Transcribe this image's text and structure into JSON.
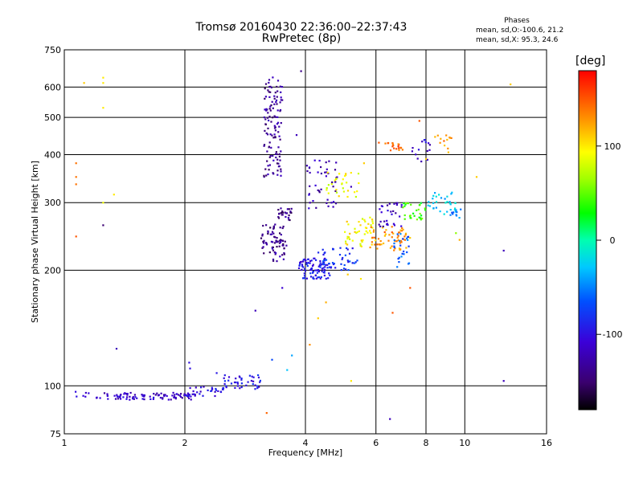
{
  "header": {
    "title": "Tromsø 20160430 22:36:00–22:37:43",
    "subtitle": "RwPretec (8p)",
    "phases_title": "Phases",
    "phases_o": "mean, sd,O:-100.6, 21.2",
    "phases_x": "mean, sd,X:  95.3, 24.6"
  },
  "colorbar": {
    "title": "[deg]",
    "ticks": [
      {
        "label": "100",
        "value": 100
      },
      {
        "label": "0",
        "value": 0
      },
      {
        "label": "-100",
        "value": -100
      }
    ],
    "range": [
      -180,
      180
    ]
  },
  "chart_data": {
    "type": "scatter",
    "title": "Tromsø 20160430 22:36:00–22:37:43",
    "subtitle": "RwPretec (8p)",
    "xlabel": "Frequency [MHz]",
    "ylabel": "Stationary phase Virtual Height [km]",
    "xscale": "log",
    "yscale": "log",
    "xlim": [
      1,
      16
    ],
    "ylim": [
      75,
      750
    ],
    "grid": true,
    "color_by": "phase (deg)",
    "xticks": [
      {
        "label": "1",
        "value": 1
      },
      {
        "label": "2",
        "value": 2
      },
      {
        "label": "4",
        "value": 4
      },
      {
        "label": "6",
        "value": 6
      },
      {
        "label": "8",
        "value": 8
      },
      {
        "label": "10",
        "value": 10
      },
      {
        "label": "16",
        "value": 16
      }
    ],
    "yticks": [
      {
        "label": "75",
        "value": 75
      },
      {
        "label": "100",
        "value": 100
      },
      {
        "label": "200",
        "value": 200
      },
      {
        "label": "300",
        "value": 300
      },
      {
        "label": "400",
        "value": 400
      },
      {
        "label": "500",
        "value": 500
      },
      {
        "label": "600",
        "value": 600
      },
      {
        "label": "750",
        "value": 750
      }
    ],
    "clusters": [
      {
        "f": [
          1.05,
          1.15
        ],
        "h": [
          93,
          97
        ],
        "phase": -110,
        "n": 6
      },
      {
        "f": [
          1.2,
          2.1
        ],
        "h": [
          92,
          96
        ],
        "phase": -115,
        "n": 90
      },
      {
        "f": [
          2.0,
          2.5
        ],
        "h": [
          94,
          100
        ],
        "phase": -100,
        "n": 35
      },
      {
        "f": [
          2.5,
          3.1
        ],
        "h": [
          98,
          107
        ],
        "phase": -95,
        "n": 40
      },
      {
        "f": [
          3.15,
          3.5
        ],
        "h": [
          350,
          640
        ],
        "phase": -135,
        "n": 120
      },
      {
        "f": [
          3.4,
          3.7
        ],
        "h": [
          270,
          290
        ],
        "phase": -140,
        "n": 25
      },
      {
        "f": [
          3.1,
          3.55
        ],
        "h": [
          220,
          265
        ],
        "phase": -140,
        "n": 55
      },
      {
        "f": [
          3.3,
          3.6
        ],
        "h": [
          210,
          240
        ],
        "phase": -130,
        "n": 20
      },
      {
        "f": [
          3.85,
          4.6
        ],
        "h": [
          190,
          215
        ],
        "phase": -95,
        "n": 95
      },
      {
        "f": [
          4.3,
          5.4
        ],
        "h": [
          200,
          230
        ],
        "phase": -80,
        "n": 45
      },
      {
        "f": [
          4.0,
          4.8
        ],
        "h": [
          290,
          390
        ],
        "phase": -120,
        "n": 45
      },
      {
        "f": [
          4.5,
          5.5
        ],
        "h": [
          310,
          360
        ],
        "phase": 90,
        "n": 30
      },
      {
        "f": [
          5.0,
          6.0
        ],
        "h": [
          230,
          275
        ],
        "phase": 95,
        "n": 45
      },
      {
        "f": [
          5.8,
          7.3
        ],
        "h": [
          225,
          260
        ],
        "phase": 130,
        "n": 55
      },
      {
        "f": [
          6.1,
          7.0
        ],
        "h": [
          260,
          300
        ],
        "phase": -120,
        "n": 30
      },
      {
        "f": [
          6.3,
          7.0
        ],
        "h": [
          410,
          430
        ],
        "phase": 150,
        "n": 18
      },
      {
        "f": [
          7.0,
          8.0
        ],
        "h": [
          270,
          300
        ],
        "phase": 40,
        "n": 30
      },
      {
        "f": [
          8.0,
          9.5
        ],
        "h": [
          280,
          320
        ],
        "phase": -30,
        "n": 30
      },
      {
        "f": [
          8.3,
          9.3
        ],
        "h": [
          400,
          450
        ],
        "phase": 130,
        "n": 12
      },
      {
        "f": [
          6.6,
          7.3
        ],
        "h": [
          200,
          250
        ],
        "phase": -60,
        "n": 25
      },
      {
        "f": [
          7.3,
          8.2
        ],
        "h": [
          380,
          440
        ],
        "phase": -110,
        "n": 15
      },
      {
        "f": [
          9.0,
          9.8
        ],
        "h": [
          270,
          290
        ],
        "phase": -50,
        "n": 12
      }
    ],
    "points": [
      {
        "f": 1.12,
        "h": 615,
        "phase": 110
      },
      {
        "f": 1.25,
        "h": 635,
        "phase": 100
      },
      {
        "f": 1.25,
        "h": 615,
        "phase": 100
      },
      {
        "f": 1.25,
        "h": 530,
        "phase": 100
      },
      {
        "f": 1.07,
        "h": 380,
        "phase": 140
      },
      {
        "f": 1.07,
        "h": 350,
        "phase": 140
      },
      {
        "f": 1.07,
        "h": 335,
        "phase": 140
      },
      {
        "f": 1.07,
        "h": 245,
        "phase": 150
      },
      {
        "f": 1.25,
        "h": 300,
        "phase": 90
      },
      {
        "f": 1.33,
        "h": 315,
        "phase": 100
      },
      {
        "f": 1.25,
        "h": 262,
        "phase": -150
      },
      {
        "f": 1.35,
        "h": 125,
        "phase": -120
      },
      {
        "f": 2.05,
        "h": 115,
        "phase": -100
      },
      {
        "f": 2.06,
        "h": 111,
        "phase": -100
      },
      {
        "f": 2.4,
        "h": 108,
        "phase": -95
      },
      {
        "f": 3.0,
        "h": 157,
        "phase": -120
      },
      {
        "f": 3.5,
        "h": 180,
        "phase": -110
      },
      {
        "f": 3.6,
        "h": 110,
        "phase": -30
      },
      {
        "f": 3.7,
        "h": 120,
        "phase": -40
      },
      {
        "f": 3.3,
        "h": 117,
        "phase": -70
      },
      {
        "f": 3.2,
        "h": 85,
        "phase": 145
      },
      {
        "f": 3.9,
        "h": 660,
        "phase": -140
      },
      {
        "f": 3.8,
        "h": 450,
        "phase": -120
      },
      {
        "f": 4.1,
        "h": 128,
        "phase": 130
      },
      {
        "f": 4.5,
        "h": 165,
        "phase": 120
      },
      {
        "f": 4.3,
        "h": 150,
        "phase": 110
      },
      {
        "f": 5.2,
        "h": 103,
        "phase": 100
      },
      {
        "f": 5.1,
        "h": 195,
        "phase": 110
      },
      {
        "f": 5.5,
        "h": 190,
        "phase": 100
      },
      {
        "f": 6.5,
        "h": 82,
        "phase": -120
      },
      {
        "f": 6.6,
        "h": 155,
        "phase": 150
      },
      {
        "f": 7.3,
        "h": 180,
        "phase": 150
      },
      {
        "f": 7.7,
        "h": 490,
        "phase": 150
      },
      {
        "f": 8.0,
        "h": 390,
        "phase": 110
      },
      {
        "f": 8.7,
        "h": 440,
        "phase": 120
      },
      {
        "f": 10.7,
        "h": 350,
        "phase": 110
      },
      {
        "f": 12.5,
        "h": 225,
        "phase": -120
      },
      {
        "f": 12.5,
        "h": 103,
        "phase": -120
      },
      {
        "f": 13.0,
        "h": 610,
        "phase": 110
      },
      {
        "f": 9.5,
        "h": 250,
        "phase": 60
      },
      {
        "f": 9.7,
        "h": 240,
        "phase": 120
      },
      {
        "f": 6.1,
        "h": 430,
        "phase": 150
      },
      {
        "f": 5.2,
        "h": 330,
        "phase": -120
      },
      {
        "f": 5.6,
        "h": 380,
        "phase": 110
      }
    ]
  }
}
